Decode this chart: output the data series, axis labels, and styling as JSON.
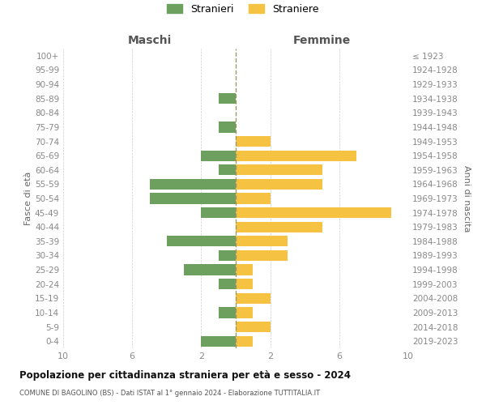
{
  "age_groups": [
    "100+",
    "95-99",
    "90-94",
    "85-89",
    "80-84",
    "75-79",
    "70-74",
    "65-69",
    "60-64",
    "55-59",
    "50-54",
    "45-49",
    "40-44",
    "35-39",
    "30-34",
    "25-29",
    "20-24",
    "15-19",
    "10-14",
    "5-9",
    "0-4"
  ],
  "birth_years": [
    "≤ 1923",
    "1924-1928",
    "1929-1933",
    "1934-1938",
    "1939-1943",
    "1944-1948",
    "1949-1953",
    "1954-1958",
    "1959-1963",
    "1964-1968",
    "1969-1973",
    "1974-1978",
    "1979-1983",
    "1984-1988",
    "1989-1993",
    "1994-1998",
    "1999-2003",
    "2004-2008",
    "2009-2013",
    "2014-2018",
    "2019-2023"
  ],
  "maschi": [
    0,
    0,
    0,
    1,
    0,
    1,
    0,
    2,
    1,
    5,
    5,
    2,
    0,
    4,
    1,
    3,
    1,
    0,
    1,
    0,
    2
  ],
  "femmine": [
    0,
    0,
    0,
    0,
    0,
    0,
    2,
    7,
    5,
    5,
    2,
    9,
    5,
    3,
    3,
    1,
    1,
    2,
    1,
    2,
    1
  ],
  "color_maschi": "#6d9f5e",
  "color_femmine": "#f5c242",
  "title": "Popolazione per cittadinanza straniera per età e sesso - 2024",
  "subtitle": "COMUNE DI BAGOLINO (BS) - Dati ISTAT al 1° gennaio 2024 - Elaborazione TUTTITALIA.IT",
  "xlabel_left": "Maschi",
  "xlabel_right": "Femmine",
  "ylabel_left": "Fasce di età",
  "ylabel_right": "Anni di nascita",
  "legend_maschi": "Stranieri",
  "legend_femmine": "Straniere",
  "xlim": 10,
  "bg_color": "#ffffff",
  "grid_color": "#cccccc"
}
